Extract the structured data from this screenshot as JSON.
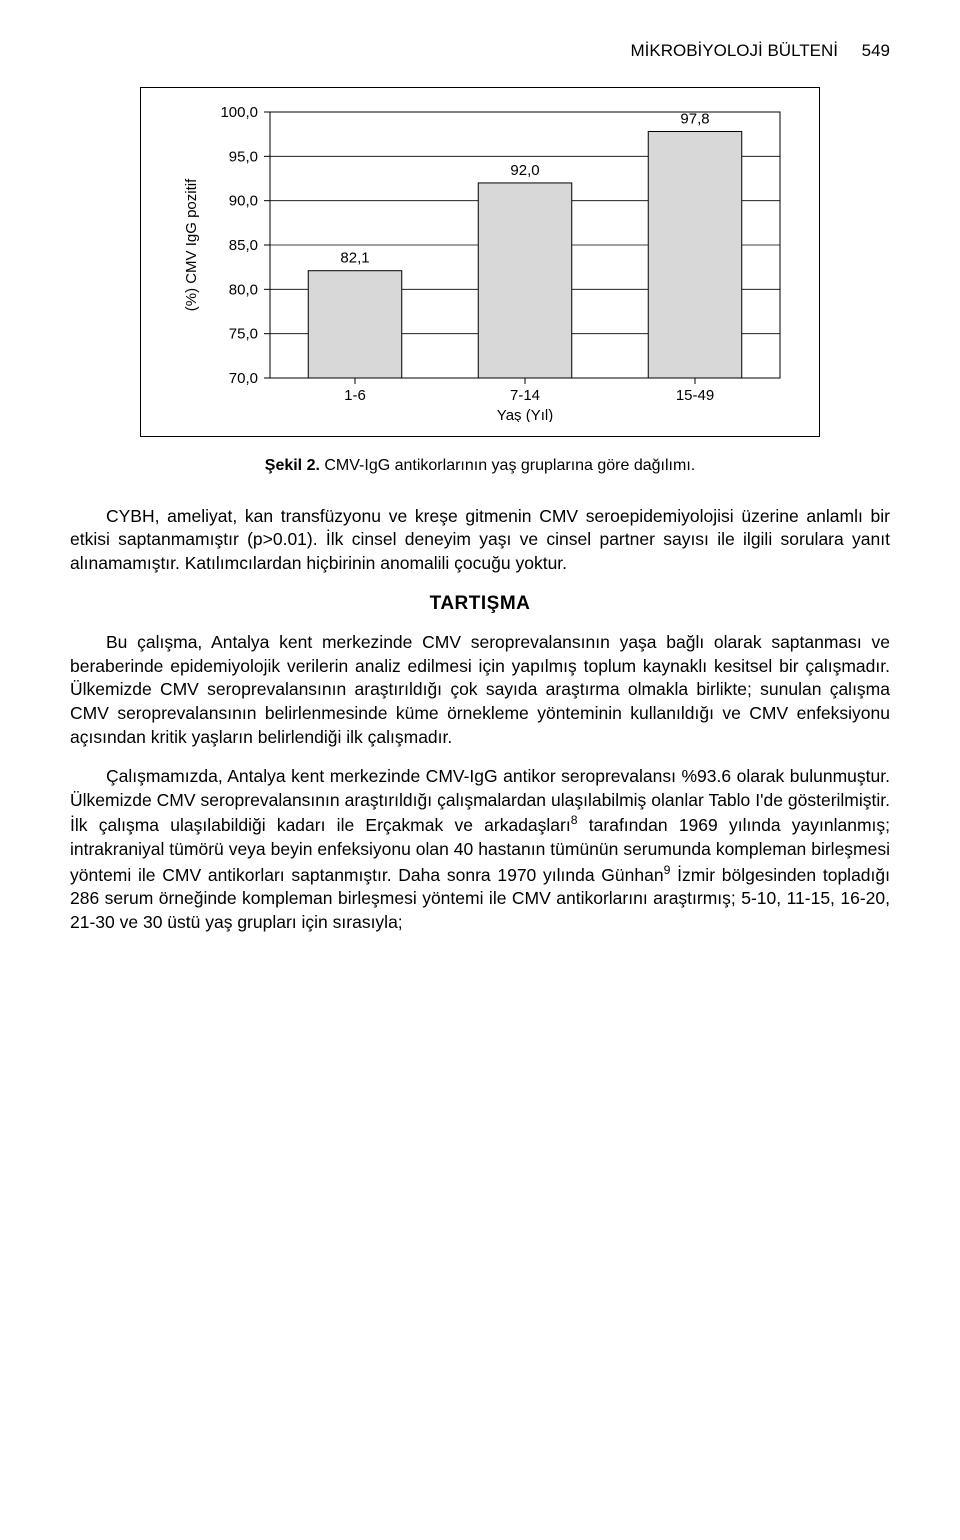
{
  "header": {
    "journal": "MİKROBİYOLOJİ BÜLTENİ",
    "page": "549"
  },
  "chart": {
    "type": "bar",
    "ylabel": "(%) CMV IgG pozitif",
    "xlabel": "Yaş (Yıl)",
    "categories": [
      "1-6",
      "7-14",
      "15-49"
    ],
    "values": [
      82.1,
      92.0,
      97.8
    ],
    "value_labels": [
      "82,1",
      "92,0",
      "97,8"
    ],
    "ylim": [
      70.0,
      100.0
    ],
    "ytick_step": 5.0,
    "yticks": [
      "70,0",
      "75,0",
      "80,0",
      "85,0",
      "90,0",
      "95,0",
      "100,0"
    ],
    "bar_color": "#d8d8d8",
    "bar_border_color": "#000000",
    "plot_background": "#ffffff",
    "grid_color": "#000000",
    "axis_color": "#000000",
    "label_fontsize": 15,
    "tick_fontsize": 15,
    "value_label_fontsize": 15,
    "bar_width_ratio": 0.55
  },
  "caption": {
    "label": "Şekil 2.",
    "text": "CMV-IgG antikorlarının yaş gruplarına göre dağılımı."
  },
  "section_heading": "TARTIŞMA",
  "paragraphs": {
    "p1": "CYBH, ameliyat, kan transfüzyonu ve kreşe gitmenin CMV seroepidemiyolojisi üzerine anlamlı bir etkisi saptanmamıştır (p>0.01). İlk cinsel deneyim yaşı ve cinsel partner sayısı ile ilgili sorulara yanıt alınamamıştır. Katılımcılardan hiçbirinin anomalili çocuğu yoktur.",
    "p2": "Bu çalışma, Antalya kent merkezinde CMV seroprevalansının yaşa bağlı olarak saptanması ve beraberinde epidemiyolojik verilerin analiz edilmesi için yapılmış toplum kaynaklı kesitsel bir çalışmadır. Ülkemizde CMV seroprevalansının araştırıldığı çok sayıda araştırma olmakla birlikte; sunulan çalışma CMV seroprevalansının belirlenmesinde küme örnekleme yönteminin kullanıldığı ve CMV enfeksiyonu açısından kritik yaşların belirlendiği ilk çalışmadır.",
    "p3_a": "Çalışmamızda, Antalya kent merkezinde CMV-IgG antikor seroprevalansı %93.6 olarak bulunmuştur. Ülkemizde CMV seroprevalansının araştırıldığı çalışmalardan ulaşılabilmiş olanlar Tablo I'de gösterilmiştir. İlk çalışma ulaşılabildiği kadarı ile Erçakmak ve arkadaşları",
    "p3_sup1": "8",
    "p3_b": " tarafından 1969 yılında yayınlanmış; intrakraniyal tümörü veya beyin enfeksiyonu olan 40 hastanın tümünün serumunda kompleman birleşmesi yöntemi ile CMV antikorları saptanmıştır. Daha sonra 1970 yılında Günhan",
    "p3_sup2": "9",
    "p3_c": " İzmir bölgesinden topladığı 286 serum örneğinde kompleman birleşmesi yöntemi ile CMV antikorlarını araştırmış; 5-10, 11-15, 16-20, 21-30 ve 30 üstü yaş grupları için sırasıyla;"
  }
}
